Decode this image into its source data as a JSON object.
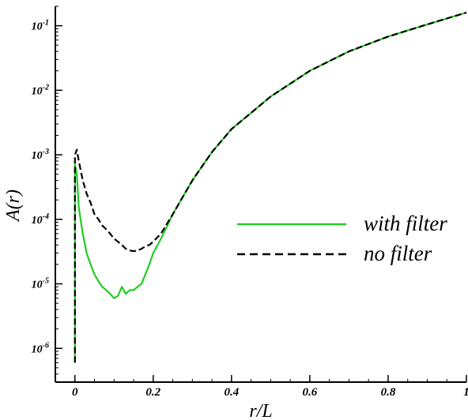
{
  "chart_data": {
    "type": "line",
    "xlabel": "r/L",
    "ylabel": "A(r)",
    "xlim": [
      -0.05,
      1.0
    ],
    "ylim": [
      3e-07,
      0.2
    ],
    "yscale": "log",
    "x_ticks": [
      0,
      0.2,
      0.4,
      0.6,
      0.8,
      1
    ],
    "x_tick_labels": [
      "0",
      "0.2",
      "0.4",
      "0.6",
      "0.8",
      "1"
    ],
    "y_ticks": [
      {
        "value": 1e-06,
        "base": "10",
        "exp": "-6"
      },
      {
        "value": 1e-05,
        "base": "10",
        "exp": "-5"
      },
      {
        "value": 0.0001,
        "base": "10",
        "exp": "-4"
      },
      {
        "value": 0.001,
        "base": "10",
        "exp": "-3"
      },
      {
        "value": 0.01,
        "base": "10",
        "exp": "-2"
      },
      {
        "value": 0.1,
        "base": "10",
        "exp": "-1"
      }
    ],
    "legend_position": "right",
    "grid": false,
    "series": [
      {
        "name": "with filter",
        "color": "#22cc22",
        "style": "solid",
        "x": [
          0.0,
          0.0,
          0.005,
          0.01,
          0.02,
          0.03,
          0.04,
          0.05,
          0.06,
          0.07,
          0.08,
          0.09,
          0.1,
          0.11,
          0.12,
          0.13,
          0.14,
          0.15,
          0.16,
          0.17,
          0.18,
          0.19,
          0.2,
          0.22,
          0.25,
          0.3,
          0.35,
          0.4,
          0.5,
          0.6,
          0.7,
          0.8,
          0.9,
          1.0
        ],
        "y": [
          6e-07,
          0.0007,
          0.0005,
          0.00015,
          6e-05,
          3e-05,
          2e-05,
          1.4e-05,
          1.1e-05,
          9e-06,
          8e-06,
          7e-06,
          6e-06,
          6.5e-06,
          9e-06,
          7e-06,
          8e-06,
          8e-06,
          9e-06,
          1e-05,
          1.4e-05,
          2e-05,
          3e-05,
          5e-05,
          0.00012,
          0.0004,
          0.0011,
          0.0025,
          0.008,
          0.02,
          0.04,
          0.068,
          0.105,
          0.16
        ]
      },
      {
        "name": "no filter",
        "color": "#000000",
        "style": "dashed",
        "x": [
          0.0,
          0.0,
          0.005,
          0.01,
          0.02,
          0.03,
          0.04,
          0.05,
          0.06,
          0.07,
          0.08,
          0.09,
          0.1,
          0.11,
          0.12,
          0.13,
          0.14,
          0.15,
          0.16,
          0.17,
          0.18,
          0.19,
          0.2,
          0.22,
          0.25,
          0.3,
          0.35,
          0.4,
          0.5,
          0.6,
          0.7,
          0.8,
          0.9,
          1.0
        ],
        "y": [
          6e-07,
          0.001,
          0.0012,
          0.0008,
          0.0004,
          0.00025,
          0.00018,
          0.00012,
          0.0001,
          8e-05,
          7e-05,
          6e-05,
          5e-05,
          4.5e-05,
          4e-05,
          3.5e-05,
          3.3e-05,
          3.2e-05,
          3.3e-05,
          3.5e-05,
          3.8e-05,
          4e-05,
          4.5e-05,
          6e-05,
          0.00012,
          0.0004,
          0.0011,
          0.0025,
          0.008,
          0.02,
          0.04,
          0.068,
          0.105,
          0.16
        ]
      }
    ]
  }
}
